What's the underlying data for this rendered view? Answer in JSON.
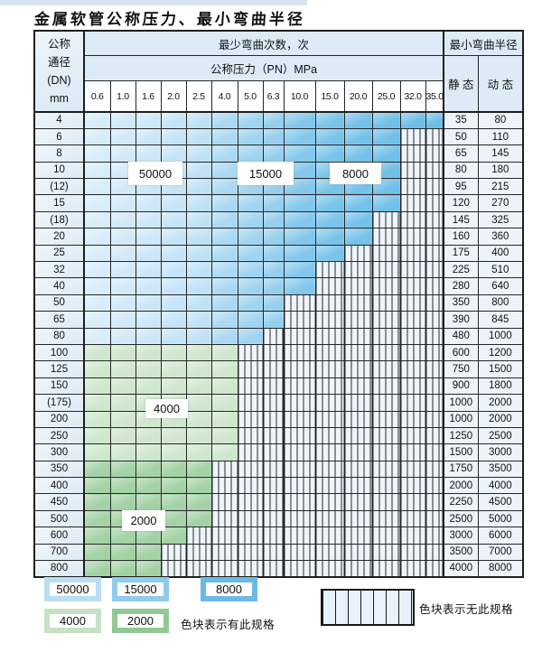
{
  "page_title": "金属软管公称压力、最小弯曲半径",
  "table": {
    "corner_header_lines": [
      "公称",
      "通径",
      "(DN)",
      "mm"
    ],
    "bend_cycles_header": "最少弯曲次数，次",
    "pressure_header": "公称压力（PN）MPa",
    "radius_header": "最小弯曲半径",
    "static_header": "静 态",
    "dynamic_header": "动 态",
    "pressure_columns": [
      "0.6",
      "1.0",
      "1.6",
      "2.0",
      "2.5",
      "4.0",
      "5.0",
      "6.3",
      "10.0",
      "15.0",
      "20.0",
      "25.0",
      "32.0",
      "35.0"
    ],
    "zones": {
      "blue_cycles_by_column_range": {
        "50000": [
          "0.6",
          "2.5"
        ],
        "15000": [
          "4.0",
          "6.3"
        ],
        "8000": [
          "10.0",
          "35.0"
        ]
      },
      "green_light_cycles": "4000",
      "green_mid_cycles": "2000",
      "hatch_meaning": "无此规格"
    },
    "rows": [
      {
        "dn": "4",
        "zone": "blue",
        "last_col": 13,
        "static": "35",
        "dynamic": "80"
      },
      {
        "dn": "6",
        "zone": "blue",
        "last_col": 11,
        "static": "50",
        "dynamic": "110"
      },
      {
        "dn": "8",
        "zone": "blue",
        "last_col": 11,
        "static": "65",
        "dynamic": "145"
      },
      {
        "dn": "10",
        "zone": "blue",
        "last_col": 11,
        "static": "80",
        "dynamic": "180"
      },
      {
        "dn": "(12)",
        "zone": "blue",
        "last_col": 11,
        "static": "95",
        "dynamic": "215"
      },
      {
        "dn": "15",
        "zone": "blue",
        "last_col": 11,
        "static": "120",
        "dynamic": "270"
      },
      {
        "dn": "(18)",
        "zone": "blue",
        "last_col": 10,
        "static": "145",
        "dynamic": "325"
      },
      {
        "dn": "20",
        "zone": "blue",
        "last_col": 10,
        "static": "160",
        "dynamic": "360"
      },
      {
        "dn": "25",
        "zone": "blue",
        "last_col": 9,
        "static": "175",
        "dynamic": "400"
      },
      {
        "dn": "32",
        "zone": "blue",
        "last_col": 8,
        "static": "225",
        "dynamic": "510"
      },
      {
        "dn": "40",
        "zone": "blue",
        "last_col": 8,
        "static": "280",
        "dynamic": "640"
      },
      {
        "dn": "50",
        "zone": "blue",
        "last_col": 7,
        "static": "350",
        "dynamic": "800"
      },
      {
        "dn": "65",
        "zone": "blue",
        "last_col": 7,
        "static": "390",
        "dynamic": "845"
      },
      {
        "dn": "80",
        "zone": "blue",
        "last_col": 6,
        "static": "480",
        "dynamic": "1000"
      },
      {
        "dn": "100",
        "zone": "green-light",
        "last_col": 5,
        "static": "600",
        "dynamic": "1200"
      },
      {
        "dn": "125",
        "zone": "green-light",
        "last_col": 5,
        "static": "750",
        "dynamic": "1500"
      },
      {
        "dn": "150",
        "zone": "green-light",
        "last_col": 5,
        "static": "900",
        "dynamic": "1800"
      },
      {
        "dn": "(175)",
        "zone": "green-light",
        "last_col": 5,
        "static": "1000",
        "dynamic": "2000"
      },
      {
        "dn": "200",
        "zone": "green-light",
        "last_col": 5,
        "static": "1000",
        "dynamic": "2000"
      },
      {
        "dn": "250",
        "zone": "green-light",
        "last_col": 5,
        "static": "1250",
        "dynamic": "2500"
      },
      {
        "dn": "300",
        "zone": "green-light",
        "last_col": 5,
        "static": "1500",
        "dynamic": "3000"
      },
      {
        "dn": "350",
        "zone": "green-mid",
        "last_col": 4,
        "static": "1750",
        "dynamic": "3500"
      },
      {
        "dn": "400",
        "zone": "green-mid",
        "last_col": 4,
        "static": "2000",
        "dynamic": "4000"
      },
      {
        "dn": "450",
        "zone": "green-mid",
        "last_col": 4,
        "static": "2250",
        "dynamic": "4500"
      },
      {
        "dn": "500",
        "zone": "green-mid",
        "last_col": 4,
        "static": "2500",
        "dynamic": "5000"
      },
      {
        "dn": "600",
        "zone": "green-mid",
        "last_col": 3,
        "static": "3000",
        "dynamic": "6000"
      },
      {
        "dn": "700",
        "zone": "green-mid",
        "last_col": 2,
        "static": "3500",
        "dynamic": "7000"
      },
      {
        "dn": "800",
        "zone": "green-mid",
        "last_col": 2,
        "static": "4000",
        "dynamic": "8000"
      }
    ]
  },
  "overlay_labels": {
    "b50000": "50000",
    "b15000": "15000",
    "b8000": "8000",
    "g4000": "4000",
    "g2000": "2000"
  },
  "legend": {
    "swatches": [
      {
        "label": "50000",
        "color": "#b9def3"
      },
      {
        "label": "15000",
        "color": "#8ecbed"
      },
      {
        "label": "8000",
        "color": "#6db9e5"
      },
      {
        "label": "4000",
        "color": "#c5e2c4"
      },
      {
        "label": "2000",
        "color": "#90c994"
      }
    ],
    "has_spec_text": "色块表示有此规格",
    "no_spec_text": "色块表示无此规格"
  },
  "colors": {
    "blue_columns": [
      "#d8ecfa",
      "#d2e9f9",
      "#cce7f8",
      "#c6e4f7",
      "#bfe1f6",
      "#abd9f2",
      "#a0d4f0",
      "#95cfee",
      "#83c8ec",
      "#7ac4ea",
      "#75c1e9",
      "#72c0e8",
      "#70bfe8",
      "#6ebee7"
    ],
    "green_light": "#cfe7cd",
    "green_mid": "#a3d2a5",
    "hatch_bg": "#eef4fb",
    "header_bg": "#dcebf6",
    "border": "#262626"
  }
}
